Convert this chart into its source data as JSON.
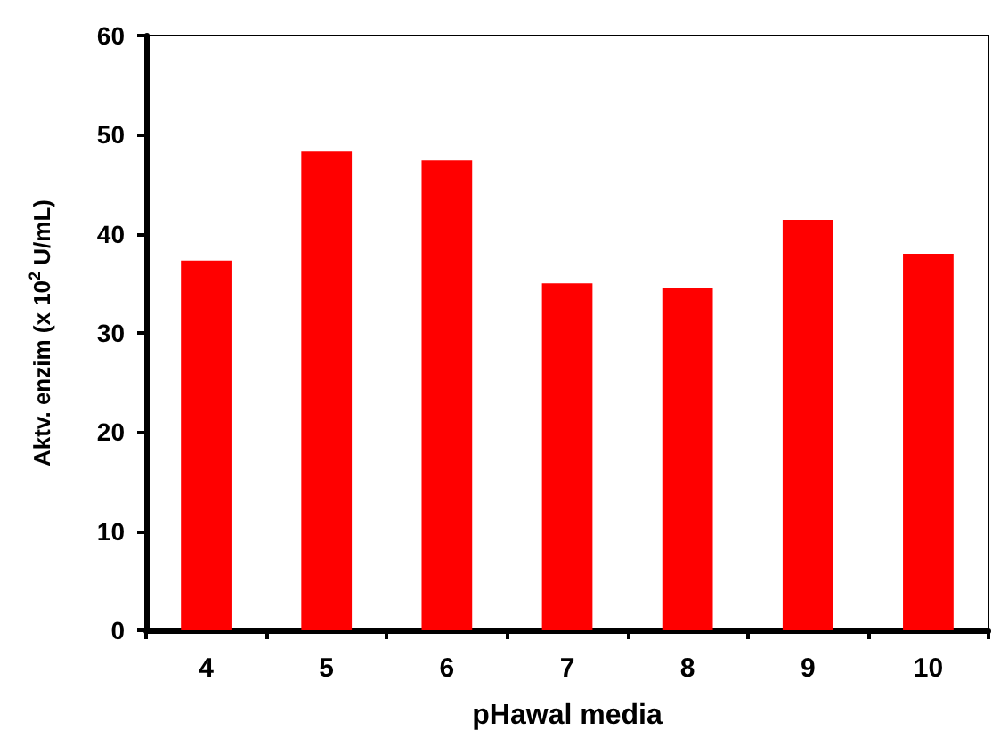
{
  "chart_data": {
    "type": "bar",
    "xlabel": "pHawal media",
    "ylabel": "Aktv. enzim (x 10$^{2}$ U/mL)",
    "categories": [
      "4",
      "5",
      "6",
      "7",
      "8",
      "9",
      "10"
    ],
    "values": [
      37.3,
      48.3,
      47.4,
      35.0,
      34.5,
      41.4,
      38.0
    ],
    "color": "#ff0000",
    "ylim": [
      0,
      60
    ],
    "yticks": [
      0,
      10,
      20,
      30,
      40,
      50,
      60
    ]
  }
}
